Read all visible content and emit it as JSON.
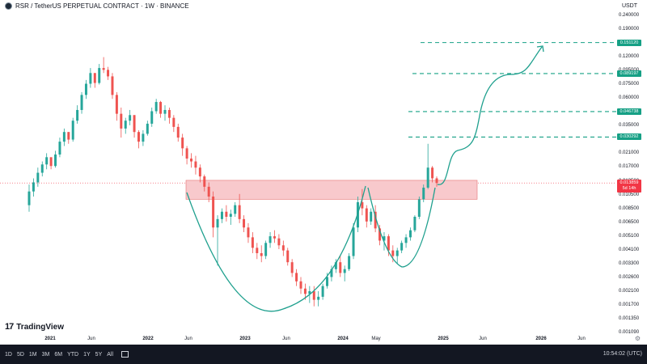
{
  "header": {
    "title": "RSR / TetherUS PERPETUAL CONTRACT · 1W · BINANCE",
    "currency": "USDT"
  },
  "y_axis": {
    "ticks": [
      "0.240000",
      "0.190000",
      "0.150000",
      "0.120000",
      "0.095000",
      "0.075000",
      "0.060000",
      "0.047500",
      "0.035000",
      "0.027000",
      "0.021000",
      "0.017000",
      "0.013500",
      "0.010500",
      "0.008500",
      "0.006500",
      "0.005100",
      "0.004100",
      "0.003300",
      "0.002600",
      "0.002100",
      "0.001700",
      "0.001350",
      "0.001090"
    ]
  },
  "price_labels": [
    "0.151120",
    "0.089197",
    "0.046738",
    "0.030292"
  ],
  "current": {
    "price": "0.013859",
    "countdown": "5d 14h"
  },
  "x_axis": {
    "ticks": [
      {
        "label": "2021",
        "year": true
      },
      {
        "label": "Jun",
        "year": false
      },
      {
        "label": "2022",
        "year": true
      },
      {
        "label": "Jun",
        "year": false
      },
      {
        "label": "2023",
        "year": true
      },
      {
        "label": "Jun",
        "year": false
      },
      {
        "label": "2024",
        "year": true
      },
      {
        "label": "May",
        "year": false
      },
      {
        "label": "2025",
        "year": true
      },
      {
        "label": "Jun",
        "year": false
      },
      {
        "label": "2026",
        "year": true
      },
      {
        "label": "Jun",
        "year": false
      }
    ]
  },
  "branding": {
    "name": "TradingView",
    "mark": "17"
  },
  "bottom_bar": {
    "timeframes": [
      "1D",
      "5D",
      "1M",
      "3M",
      "6M",
      "YTD",
      "1Y",
      "5Y",
      "All"
    ],
    "time": "10:54:02 (UTC)"
  },
  "colors": {
    "up": "#26a69a",
    "down": "#ef5350",
    "zone_fill": "#f8c9cc",
    "zone_stroke": "#e57373",
    "target": "#16a085",
    "curve": "#1fa08e"
  },
  "chart_data": {
    "type": "candlestick",
    "scale": "log",
    "candles": [
      [
        0.0095,
        0.0135,
        0.0085,
        0.012
      ],
      [
        0.012,
        0.015,
        0.011,
        0.014
      ],
      [
        0.014,
        0.018,
        0.013,
        0.0165
      ],
      [
        0.0165,
        0.02,
        0.0155,
        0.019
      ],
      [
        0.019,
        0.023,
        0.0175,
        0.0215
      ],
      [
        0.0215,
        0.021,
        0.0175,
        0.0185
      ],
      [
        0.0185,
        0.024,
        0.018,
        0.0225
      ],
      [
        0.0225,
        0.03,
        0.0215,
        0.028
      ],
      [
        0.028,
        0.035,
        0.026,
        0.033
      ],
      [
        0.033,
        0.033,
        0.027,
        0.029
      ],
      [
        0.029,
        0.042,
        0.028,
        0.04
      ],
      [
        0.04,
        0.052,
        0.038,
        0.048
      ],
      [
        0.048,
        0.065,
        0.045,
        0.062
      ],
      [
        0.062,
        0.08,
        0.058,
        0.075
      ],
      [
        0.075,
        0.098,
        0.07,
        0.09
      ],
      [
        0.09,
        0.09,
        0.07,
        0.076
      ],
      [
        0.076,
        0.105,
        0.074,
        0.098
      ],
      [
        0.098,
        0.118,
        0.09,
        0.095
      ],
      [
        0.095,
        0.1,
        0.08,
        0.085
      ],
      [
        0.085,
        0.09,
        0.058,
        0.062
      ],
      [
        0.062,
        0.065,
        0.04,
        0.045
      ],
      [
        0.045,
        0.05,
        0.03,
        0.035
      ],
      [
        0.035,
        0.042,
        0.032,
        0.04
      ],
      [
        0.04,
        0.048,
        0.037,
        0.044
      ],
      [
        0.044,
        0.044,
        0.03,
        0.033
      ],
      [
        0.033,
        0.034,
        0.025,
        0.028
      ],
      [
        0.028,
        0.034,
        0.026,
        0.032
      ],
      [
        0.032,
        0.04,
        0.031,
        0.038
      ],
      [
        0.038,
        0.05,
        0.036,
        0.047
      ],
      [
        0.047,
        0.058,
        0.045,
        0.055
      ],
      [
        0.055,
        0.056,
        0.042,
        0.045
      ],
      [
        0.045,
        0.052,
        0.04,
        0.048
      ],
      [
        0.048,
        0.05,
        0.038,
        0.042
      ],
      [
        0.042,
        0.044,
        0.033,
        0.036
      ],
      [
        0.036,
        0.038,
        0.028,
        0.03
      ],
      [
        0.03,
        0.032,
        0.022,
        0.025
      ],
      [
        0.025,
        0.026,
        0.019,
        0.021
      ],
      [
        0.021,
        0.023,
        0.018,
        0.02
      ],
      [
        0.02,
        0.022,
        0.016,
        0.018
      ],
      [
        0.018,
        0.019,
        0.014,
        0.0155
      ],
      [
        0.0155,
        0.016,
        0.012,
        0.013
      ],
      [
        0.013,
        0.014,
        0.01,
        0.011
      ],
      [
        0.011,
        0.012,
        0.0055,
        0.0065
      ],
      [
        0.0065,
        0.008,
        0.0034,
        0.0075
      ],
      [
        0.0075,
        0.009,
        0.007,
        0.0085
      ],
      [
        0.0085,
        0.0095,
        0.0072,
        0.0078
      ],
      [
        0.0078,
        0.0088,
        0.0068,
        0.0082
      ],
      [
        0.0082,
        0.01,
        0.0078,
        0.0095
      ],
      [
        0.0095,
        0.0115,
        0.007,
        0.0075
      ],
      [
        0.0075,
        0.008,
        0.006,
        0.0065
      ],
      [
        0.0065,
        0.007,
        0.005,
        0.0055
      ],
      [
        0.0055,
        0.006,
        0.0042,
        0.0046
      ],
      [
        0.0046,
        0.005,
        0.0038,
        0.0042
      ],
      [
        0.0042,
        0.0048,
        0.0036,
        0.004
      ],
      [
        0.004,
        0.0052,
        0.0038,
        0.005
      ],
      [
        0.005,
        0.006,
        0.0046,
        0.0056
      ],
      [
        0.0056,
        0.0062,
        0.005,
        0.0054
      ],
      [
        0.0054,
        0.0058,
        0.0045,
        0.0048
      ],
      [
        0.0048,
        0.0052,
        0.004,
        0.0044
      ],
      [
        0.0044,
        0.0046,
        0.0034,
        0.0036
      ],
      [
        0.0036,
        0.0038,
        0.0028,
        0.003
      ],
      [
        0.003,
        0.0032,
        0.0024,
        0.0026
      ],
      [
        0.0026,
        0.0028,
        0.0021,
        0.0023
      ],
      [
        0.0023,
        0.0025,
        0.0019,
        0.0021
      ],
      [
        0.0021,
        0.0024,
        0.0018,
        0.0022
      ],
      [
        0.0022,
        0.0024,
        0.0017,
        0.0019
      ],
      [
        0.0019,
        0.0022,
        0.0017,
        0.002
      ],
      [
        0.002,
        0.0025,
        0.0019,
        0.0024
      ],
      [
        0.0024,
        0.003,
        0.0023,
        0.0028
      ],
      [
        0.0028,
        0.0034,
        0.0026,
        0.0032
      ],
      [
        0.0032,
        0.0038,
        0.003,
        0.0036
      ],
      [
        0.0036,
        0.004,
        0.0028,
        0.003
      ],
      [
        0.003,
        0.0034,
        0.0026,
        0.0032
      ],
      [
        0.0032,
        0.0042,
        0.0031,
        0.004
      ],
      [
        0.004,
        0.007,
        0.0038,
        0.0065
      ],
      [
        0.0065,
        0.011,
        0.006,
        0.01
      ],
      [
        0.01,
        0.0125,
        0.008,
        0.009
      ],
      [
        0.009,
        0.0095,
        0.0065,
        0.0072
      ],
      [
        0.0072,
        0.009,
        0.0068,
        0.0085
      ],
      [
        0.0085,
        0.0095,
        0.006,
        0.0064
      ],
      [
        0.0064,
        0.0068,
        0.0048,
        0.0052
      ],
      [
        0.0052,
        0.006,
        0.0044,
        0.0056
      ],
      [
        0.0056,
        0.0058,
        0.004,
        0.0044
      ],
      [
        0.0044,
        0.0048,
        0.0036,
        0.004
      ],
      [
        0.004,
        0.0046,
        0.0035,
        0.0044
      ],
      [
        0.0044,
        0.0052,
        0.0042,
        0.005
      ],
      [
        0.005,
        0.0058,
        0.0046,
        0.0055
      ],
      [
        0.0055,
        0.0065,
        0.0052,
        0.0062
      ],
      [
        0.0062,
        0.008,
        0.006,
        0.0078
      ],
      [
        0.0078,
        0.011,
        0.0075,
        0.0105
      ],
      [
        0.0105,
        0.0135,
        0.01,
        0.0128
      ],
      [
        0.0128,
        0.027,
        0.0125,
        0.018
      ],
      [
        0.018,
        0.0185,
        0.014,
        0.015
      ],
      [
        0.015,
        0.0155,
        0.013,
        0.01386
      ]
    ],
    "resistance_zone": [
      0.0105,
      0.0145
    ],
    "targets": [
      0.15112,
      0.089197,
      0.046738,
      0.030292
    ],
    "current_price": 0.013859
  }
}
